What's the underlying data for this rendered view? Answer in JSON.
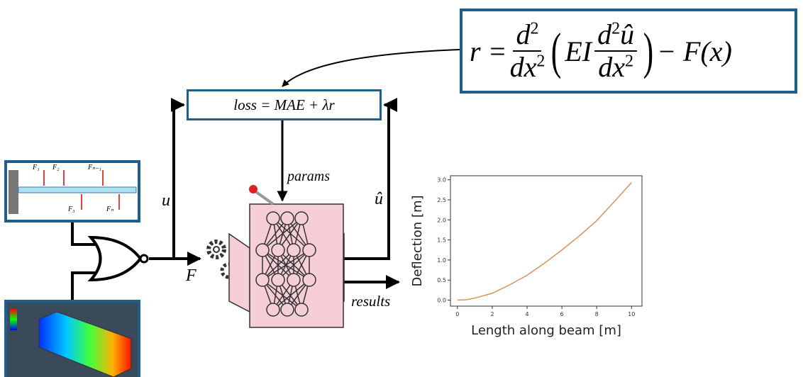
{
  "equation": {
    "lhs": "r =",
    "frac1": {
      "num": "d",
      "num_exp": "2",
      "den": "dx",
      "den_exp": "2"
    },
    "coef": "EI",
    "frac2": {
      "num": "d",
      "num_exp": "2",
      "num_var": "û",
      "den": "dx",
      "den_exp": "2"
    },
    "rest": "− F(x)"
  },
  "loss": "loss = MAE + λr",
  "labels": {
    "params": "params",
    "u": "u",
    "u_hat": "û",
    "force": "F",
    "results": "results"
  },
  "beam": {
    "forces": [
      "F₁",
      "F₂",
      "Fₙ₋₁",
      "F₃",
      "Fₙ"
    ]
  },
  "chart_data": {
    "type": "line",
    "x_label": "Length along beam [m]",
    "y_label": "Deflection [m]",
    "x": [
      0,
      0.5,
      1,
      2,
      3,
      4,
      5,
      6,
      7,
      8,
      9,
      10
    ],
    "series": [
      {
        "color": "#d9925a",
        "values": [
          0.0,
          0.01,
          0.05,
          0.17,
          0.38,
          0.62,
          0.92,
          1.25,
          1.6,
          1.98,
          2.45,
          2.93
        ]
      }
    ],
    "xlim": [
      -0.4,
      10.6
    ],
    "ylim": [
      -0.15,
      3.1
    ],
    "xticks": [
      0,
      2,
      4,
      6,
      8,
      10
    ],
    "yticks": [
      {
        "value": 0,
        "label": "0.0"
      },
      {
        "value": 0.5,
        "label": "0.5"
      },
      {
        "value": 1,
        "label": "1.0"
      },
      {
        "value": 1.5,
        "label": "1.5"
      },
      {
        "value": 2,
        "label": "2.0"
      },
      {
        "value": 2.5,
        "label": "2.5"
      },
      {
        "value": 3,
        "label": "3.0"
      }
    ]
  }
}
